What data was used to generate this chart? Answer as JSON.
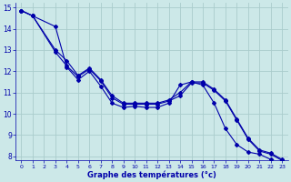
{
  "title": "Graphe des températures (°c)",
  "background_color": "#cce8e8",
  "grid_color": "#aacccc",
  "line_color": "#0000aa",
  "xlim": [
    -0.5,
    23.5
  ],
  "ylim": [
    7.8,
    15.2
  ],
  "xticks": [
    0,
    1,
    2,
    3,
    4,
    5,
    6,
    7,
    8,
    9,
    10,
    11,
    12,
    13,
    14,
    15,
    16,
    17,
    18,
    19,
    20,
    21,
    22,
    23
  ],
  "yticks": [
    8,
    9,
    10,
    11,
    12,
    13,
    14,
    15
  ],
  "series1_x": [
    0,
    1,
    3,
    4,
    5,
    6,
    7,
    8,
    9,
    10,
    11,
    12,
    13,
    14,
    15,
    16,
    17,
    18,
    19,
    20,
    21,
    22,
    23
  ],
  "series1_y": [
    14.85,
    14.6,
    14.1,
    12.2,
    11.6,
    12.0,
    11.3,
    10.5,
    10.3,
    10.35,
    10.3,
    10.3,
    10.5,
    11.35,
    11.5,
    11.35,
    10.5,
    9.3,
    8.55,
    8.2,
    8.1,
    7.85,
    7.7
  ],
  "series2_x": [
    0,
    1,
    3,
    4,
    5,
    6,
    7,
    8,
    9,
    10,
    11,
    12,
    13,
    14,
    15,
    16,
    17,
    18,
    19,
    20,
    21,
    22,
    23
  ],
  "series2_y": [
    14.85,
    14.6,
    12.9,
    12.25,
    11.75,
    12.1,
    11.55,
    10.75,
    10.45,
    10.45,
    10.45,
    10.45,
    10.6,
    10.85,
    11.45,
    11.45,
    11.1,
    10.6,
    9.7,
    8.8,
    8.25,
    8.1,
    7.8
  ],
  "series3_x": [
    0,
    1,
    3,
    4,
    5,
    6,
    7,
    8,
    9,
    10,
    11,
    12,
    13,
    14,
    15,
    16,
    17,
    18,
    19,
    20,
    21,
    22,
    23
  ],
  "series3_y": [
    14.85,
    14.6,
    13.0,
    12.5,
    11.8,
    12.15,
    11.6,
    10.85,
    10.5,
    10.5,
    10.5,
    10.5,
    10.65,
    11.0,
    11.5,
    11.5,
    11.15,
    10.65,
    9.75,
    8.85,
    8.3,
    8.15,
    7.85
  ]
}
